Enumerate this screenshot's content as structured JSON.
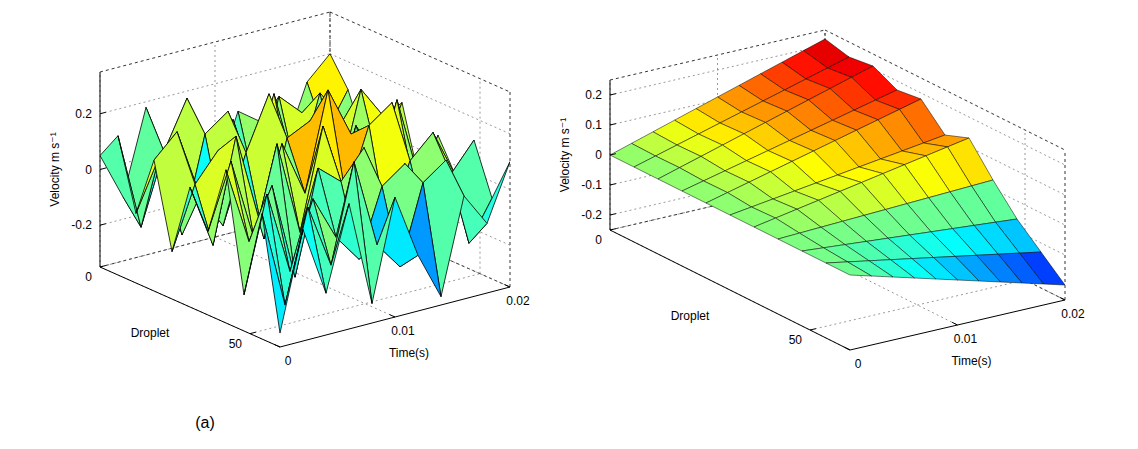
{
  "chart_data": [
    {
      "type": "surface",
      "x_label": "Time(s)",
      "y_label": "Droplet",
      "z_label": "Velocity m s⁻¹",
      "x": [
        0,
        0.002,
        0.004,
        0.006,
        0.008,
        0.01,
        0.012,
        0.014,
        0.016,
        0.018,
        0.02
      ],
      "y": [
        0,
        6,
        12,
        18,
        24,
        30,
        36,
        42,
        48,
        54,
        60
      ],
      "values": [
        [
          0.05,
          -0.12,
          0.18,
          -0.05,
          0.1,
          -0.15,
          0.08,
          0.02,
          -0.1,
          0.12,
          0.2
        ],
        [
          0.15,
          -0.2,
          0.05,
          0.22,
          -0.08,
          0.1,
          -0.18,
          0.14,
          0.06,
          -0.04,
          0.1
        ],
        [
          -0.1,
          0.08,
          -0.22,
          0.12,
          0.18,
          -0.06,
          0.2,
          -0.12,
          0.16,
          0.04,
          -0.08
        ],
        [
          0.12,
          0.2,
          -0.05,
          -0.18,
          0.06,
          0.25,
          -0.1,
          0.08,
          -0.14,
          0.18,
          0.06
        ],
        [
          -0.18,
          0.04,
          0.14,
          0.08,
          -0.22,
          0.12,
          0.16,
          -0.2,
          0.1,
          -0.06,
          0.14
        ],
        [
          0.08,
          -0.15,
          0.22,
          -0.1,
          0.15,
          -0.05,
          0.3,
          0.12,
          -0.08,
          0.2,
          -0.12
        ],
        [
          -0.05,
          0.18,
          -0.12,
          0.2,
          -0.14,
          0.22,
          -0.06,
          0.18,
          0.24,
          -0.1,
          0.08
        ],
        [
          0.2,
          -0.08,
          0.1,
          -0.25,
          0.12,
          0.05,
          0.15,
          -0.16,
          0.06,
          0.14,
          -0.04
        ],
        [
          -0.22,
          0.12,
          -0.18,
          0.06,
          -0.1,
          -0.2,
          0.04,
          0.1,
          -0.18,
          0.02,
          0.12
        ],
        [
          0.1,
          -0.25,
          0.08,
          -0.15,
          0.2,
          -0.12,
          -0.22,
          0.06,
          0.12,
          -0.2,
          -0.06
        ],
        [
          -0.3,
          0.05,
          -0.2,
          0.1,
          -0.28,
          0.08,
          -0.15,
          -0.32,
          0.02,
          -0.1,
          0.1
        ]
      ],
      "xlim": [
        0,
        0.02
      ],
      "xticks": [
        0,
        0.01,
        0.02
      ],
      "ylim": [
        0,
        60
      ],
      "yticks": [
        0,
        50
      ],
      "zlim": [
        -0.35,
        0.35
      ],
      "zticks": [
        -0.2,
        0,
        0.2
      ],
      "grid": true
    },
    {
      "type": "surface",
      "x_label": "Time(s)",
      "y_label": "Droplet",
      "z_label": "Velocity m s⁻¹",
      "x": [
        0,
        0.002,
        0.004,
        0.006,
        0.008,
        0.01,
        0.012,
        0.014,
        0.016,
        0.018,
        0.02
      ],
      "y": [
        0,
        6,
        12,
        18,
        24,
        30,
        36,
        42,
        48,
        54,
        60
      ],
      "values": [
        [
          0,
          0.022,
          0.044,
          0.066,
          0.088,
          0.11,
          0.132,
          0.154,
          0.176,
          0.198,
          0.22
        ],
        [
          0,
          0.02,
          0.04,
          0.06,
          0.08,
          0.1,
          0.12,
          0.14,
          0.16,
          0.18,
          0.2
        ],
        [
          0,
          0.021,
          0.042,
          0.063,
          0.084,
          0.105,
          0.126,
          0.147,
          0.168,
          0.189,
          0.21
        ],
        [
          0,
          0.017,
          0.034,
          0.051,
          0.068,
          0.085,
          0.102,
          0.119,
          0.136,
          0.153,
          0.17
        ],
        [
          0,
          0.018,
          0.036,
          0.054,
          0.072,
          0.09,
          0.108,
          0.126,
          0.144,
          0.162,
          0.18
        ],
        [
          0,
          0.01,
          0.02,
          0.03,
          0.04,
          0.05,
          0.06,
          0.07,
          0.08,
          0.09,
          0.1
        ],
        [
          0,
          0.013,
          0.026,
          0.039,
          0.052,
          0.065,
          0.078,
          0.091,
          0.104,
          0.117,
          0.13
        ],
        [
          0,
          0.003,
          0.006,
          0.009,
          0.012,
          0.015,
          0.018,
          0.021,
          0.024,
          0.027,
          0.03
        ],
        [
          0,
          -0.006,
          -0.012,
          -0.018,
          -0.024,
          -0.03,
          -0.036,
          -0.042,
          -0.048,
          -0.054,
          -0.06
        ],
        [
          0,
          -0.013,
          -0.026,
          -0.039,
          -0.052,
          -0.065,
          -0.078,
          -0.091,
          -0.104,
          -0.117,
          -0.13
        ],
        [
          0,
          -0.02,
          -0.04,
          -0.06,
          -0.08,
          -0.1,
          -0.12,
          -0.14,
          -0.16,
          -0.18,
          -0.2
        ]
      ],
      "xlim": [
        0,
        0.02
      ],
      "xticks": [
        0,
        0.01,
        0.02
      ],
      "ylim": [
        0,
        60
      ],
      "yticks": [
        0,
        50
      ],
      "zlim": [
        -0.25,
        0.25
      ],
      "zticks": [
        -0.2,
        -0.1,
        0,
        0.1,
        0.2
      ],
      "grid": true
    }
  ],
  "caption": "(a)"
}
